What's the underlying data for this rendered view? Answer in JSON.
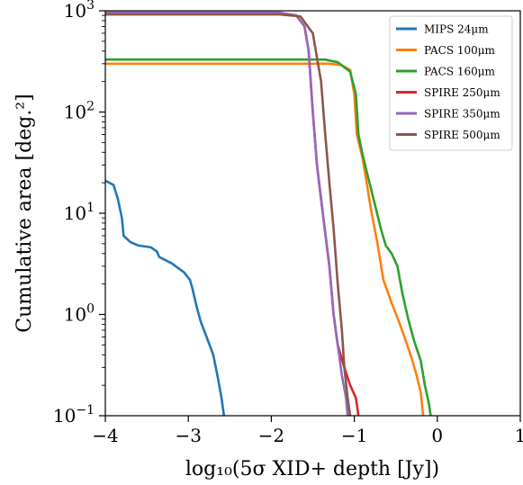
{
  "chart_data": {
    "type": "line",
    "xlabel": "log₁₀(5σ XID+ depth [Jy])",
    "ylabel": "Cumulative area [deg.²]",
    "xlim": [
      -4,
      1
    ],
    "ylim": [
      0.1,
      1000
    ],
    "yscale": "log",
    "grid": false,
    "legend_position": "top-right",
    "x_ticks": [
      -4,
      -3,
      -2,
      -1,
      0,
      1
    ],
    "x_tick_labels": [
      "−4",
      "−3",
      "−2",
      "−1",
      "0",
      "1"
    ],
    "y_ticks": [
      0.1,
      1,
      10,
      100,
      1000
    ],
    "y_tick_labels": [
      {
        "base": "10",
        "exp": "−1"
      },
      {
        "base": "10",
        "exp": "0"
      },
      {
        "base": "10",
        "exp": "1"
      },
      {
        "base": "10",
        "exp": "2"
      },
      {
        "base": "10",
        "exp": "3"
      }
    ],
    "series": [
      {
        "name": "MIPS 24μm",
        "color": "#1f77b4",
        "points": [
          [
            -4.0,
            21
          ],
          [
            -3.9,
            19
          ],
          [
            -3.85,
            14
          ],
          [
            -3.8,
            9
          ],
          [
            -3.78,
            6
          ],
          [
            -3.7,
            5.2
          ],
          [
            -3.6,
            4.8
          ],
          [
            -3.45,
            4.6
          ],
          [
            -3.38,
            4.2
          ],
          [
            -3.35,
            3.7
          ],
          [
            -3.2,
            3.2
          ],
          [
            -3.05,
            2.6
          ],
          [
            -2.98,
            2.2
          ],
          [
            -2.95,
            1.8
          ],
          [
            -2.9,
            1.2
          ],
          [
            -2.85,
            0.85
          ],
          [
            -2.78,
            0.6
          ],
          [
            -2.7,
            0.4
          ],
          [
            -2.65,
            0.25
          ],
          [
            -2.6,
            0.15
          ],
          [
            -2.57,
            0.1
          ]
        ]
      },
      {
        "name": "PACS 100μm",
        "color": "#ff7f0e",
        "points": [
          [
            -4.0,
            300
          ],
          [
            -1.3,
            300
          ],
          [
            -1.15,
            290
          ],
          [
            -1.05,
            260
          ],
          [
            -1.0,
            150
          ],
          [
            -0.97,
            60
          ],
          [
            -0.9,
            35
          ],
          [
            -0.85,
            20
          ],
          [
            -0.8,
            11
          ],
          [
            -0.72,
            5
          ],
          [
            -0.65,
            2.2
          ],
          [
            -0.55,
            1.3
          ],
          [
            -0.45,
            0.8
          ],
          [
            -0.38,
            0.55
          ],
          [
            -0.3,
            0.35
          ],
          [
            -0.25,
            0.25
          ],
          [
            -0.2,
            0.17
          ],
          [
            -0.17,
            0.1
          ]
        ]
      },
      {
        "name": "PACS 160μm",
        "color": "#2ca02c",
        "points": [
          [
            -4.0,
            330
          ],
          [
            -1.35,
            330
          ],
          [
            -1.2,
            310
          ],
          [
            -1.05,
            250
          ],
          [
            -0.98,
            150
          ],
          [
            -0.95,
            60
          ],
          [
            -0.9,
            38
          ],
          [
            -0.83,
            22
          ],
          [
            -0.75,
            12
          ],
          [
            -0.68,
            7
          ],
          [
            -0.62,
            4.8
          ],
          [
            -0.55,
            4.0
          ],
          [
            -0.48,
            3.0
          ],
          [
            -0.42,
            1.6
          ],
          [
            -0.35,
            0.9
          ],
          [
            -0.28,
            0.55
          ],
          [
            -0.2,
            0.35
          ],
          [
            -0.15,
            0.2
          ],
          [
            -0.1,
            0.13
          ],
          [
            -0.08,
            0.1
          ]
        ]
      },
      {
        "name": "SPIRE 250μm",
        "color": "#d62728",
        "points": [
          [
            -4.0,
            950
          ],
          [
            -1.9,
            950
          ],
          [
            -1.7,
            900
          ],
          [
            -1.6,
            700
          ],
          [
            -1.55,
            400
          ],
          [
            -1.5,
            100
          ],
          [
            -1.45,
            30
          ],
          [
            -1.38,
            10
          ],
          [
            -1.3,
            3
          ],
          [
            -1.25,
            1.0
          ],
          [
            -1.2,
            0.5
          ],
          [
            -1.12,
            0.3
          ],
          [
            -1.05,
            0.2
          ],
          [
            -0.98,
            0.15
          ],
          [
            -0.95,
            0.1
          ]
        ]
      },
      {
        "name": "SPIRE 350μm",
        "color": "#9467bd",
        "points": [
          [
            -4.0,
            960
          ],
          [
            -1.9,
            960
          ],
          [
            -1.7,
            900
          ],
          [
            -1.6,
            700
          ],
          [
            -1.55,
            400
          ],
          [
            -1.5,
            100
          ],
          [
            -1.45,
            30
          ],
          [
            -1.38,
            10
          ],
          [
            -1.3,
            3
          ],
          [
            -1.25,
            1.0
          ],
          [
            -1.2,
            0.5
          ],
          [
            -1.15,
            0.25
          ],
          [
            -1.1,
            0.15
          ],
          [
            -1.08,
            0.1
          ]
        ]
      },
      {
        "name": "SPIRE 500μm",
        "color": "#8c564b",
        "points": [
          [
            -4.0,
            920
          ],
          [
            -1.9,
            920
          ],
          [
            -1.65,
            880
          ],
          [
            -1.5,
            600
          ],
          [
            -1.4,
            200
          ],
          [
            -1.35,
            60
          ],
          [
            -1.3,
            20
          ],
          [
            -1.25,
            7
          ],
          [
            -1.2,
            2
          ],
          [
            -1.15,
            0.7
          ],
          [
            -1.12,
            0.3
          ],
          [
            -1.08,
            0.15
          ],
          [
            -1.05,
            0.1
          ]
        ]
      }
    ]
  }
}
